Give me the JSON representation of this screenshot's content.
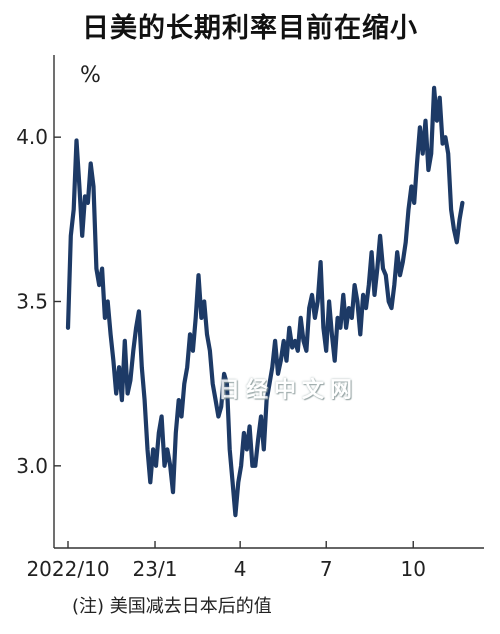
{
  "chart_data": {
    "type": "line",
    "title": "日美的长期利率目前在缩小",
    "unit_label": "%",
    "note": "(注) 美国减去日本后的值",
    "watermark": "日经中文网",
    "ylim": [
      2.75,
      4.25
    ],
    "y_ticks": [
      {
        "value": 3.0,
        "label": "3.0"
      },
      {
        "value": 3.5,
        "label": "3.5"
      },
      {
        "value": 4.0,
        "label": "4.0"
      }
    ],
    "x_ticks": [
      {
        "value": "2022-10",
        "label": "2022/10"
      },
      {
        "value": "2023-01",
        "label": "23/1"
      },
      {
        "value": "2023-04",
        "label": "4"
      },
      {
        "value": "2023-07",
        "label": "7"
      },
      {
        "value": "2023-10",
        "label": "10"
      }
    ],
    "x_range": [
      "2022-10-01",
      "2023-11-30"
    ],
    "line_color": "#1d3a66",
    "series": [
      {
        "x": [
          "2022-10-01",
          "2022-10-04",
          "2022-10-07",
          "2022-10-10",
          "2022-10-13",
          "2022-10-16",
          "2022-10-19",
          "2022-10-22",
          "2022-10-25",
          "2022-10-28",
          "2022-10-31",
          "2022-11-03",
          "2022-11-06",
          "2022-11-09",
          "2022-11-12",
          "2022-11-15",
          "2022-11-18",
          "2022-11-21",
          "2022-11-24",
          "2022-11-27",
          "2022-11-30",
          "2022-12-03",
          "2022-12-06",
          "2022-12-09",
          "2022-12-12",
          "2022-12-15",
          "2022-12-18",
          "2022-12-21",
          "2022-12-24",
          "2022-12-27",
          "2022-12-30",
          "2023-01-02",
          "2023-01-05",
          "2023-01-08",
          "2023-01-11",
          "2023-01-14",
          "2023-01-17",
          "2023-01-20",
          "2023-01-23",
          "2023-01-26",
          "2023-01-29",
          "2023-02-01",
          "2023-02-04",
          "2023-02-07",
          "2023-02-10",
          "2023-02-13",
          "2023-02-16",
          "2023-02-19",
          "2023-02-22",
          "2023-02-25",
          "2023-02-28",
          "2023-03-03",
          "2023-03-06",
          "2023-03-09",
          "2023-03-12",
          "2023-03-15",
          "2023-03-18",
          "2023-03-21",
          "2023-03-24",
          "2023-03-27",
          "2023-03-30",
          "2023-04-02",
          "2023-04-05",
          "2023-04-08",
          "2023-04-11",
          "2023-04-14",
          "2023-04-17",
          "2023-04-20",
          "2023-04-23",
          "2023-04-26",
          "2023-04-29",
          "2023-05-02",
          "2023-05-05",
          "2023-05-08",
          "2023-05-11",
          "2023-05-14",
          "2023-05-17",
          "2023-05-20",
          "2023-05-23",
          "2023-05-26",
          "2023-05-29",
          "2023-06-01",
          "2023-06-04",
          "2023-06-07",
          "2023-06-10",
          "2023-06-13",
          "2023-06-16",
          "2023-06-19",
          "2023-06-22",
          "2023-06-25",
          "2023-06-28",
          "2023-07-01",
          "2023-07-04",
          "2023-07-07",
          "2023-07-10",
          "2023-07-13",
          "2023-07-16",
          "2023-07-19",
          "2023-07-22",
          "2023-07-25",
          "2023-07-28",
          "2023-07-31",
          "2023-08-03",
          "2023-08-06",
          "2023-08-09",
          "2023-08-12",
          "2023-08-15",
          "2023-08-18",
          "2023-08-21",
          "2023-08-24",
          "2023-08-27",
          "2023-08-30",
          "2023-09-02",
          "2023-09-05",
          "2023-09-08",
          "2023-09-11",
          "2023-09-14",
          "2023-09-17",
          "2023-09-20",
          "2023-09-23",
          "2023-09-26",
          "2023-09-29",
          "2023-10-02",
          "2023-10-05",
          "2023-10-08",
          "2023-10-11",
          "2023-10-14",
          "2023-10-17",
          "2023-10-20",
          "2023-10-23",
          "2023-10-26",
          "2023-10-29",
          "2023-11-01",
          "2023-11-04",
          "2023-11-07",
          "2023-11-10",
          "2023-11-13",
          "2023-11-16",
          "2023-11-19",
          "2023-11-22"
        ],
        "y": [
          3.42,
          3.7,
          3.78,
          3.99,
          3.85,
          3.7,
          3.82,
          3.8,
          3.92,
          3.85,
          3.6,
          3.55,
          3.6,
          3.45,
          3.5,
          3.4,
          3.32,
          3.22,
          3.3,
          3.2,
          3.38,
          3.22,
          3.26,
          3.35,
          3.42,
          3.47,
          3.3,
          3.2,
          3.05,
          2.95,
          3.05,
          3.0,
          3.1,
          3.15,
          3.0,
          3.05,
          3.0,
          2.92,
          3.1,
          3.2,
          3.15,
          3.25,
          3.3,
          3.4,
          3.35,
          3.45,
          3.58,
          3.45,
          3.5,
          3.4,
          3.35,
          3.25,
          3.2,
          3.15,
          3.18,
          3.28,
          3.25,
          3.05,
          2.95,
          2.85,
          2.95,
          3.0,
          3.1,
          3.05,
          3.12,
          3.0,
          3.0,
          3.08,
          3.15,
          3.05,
          3.2,
          3.25,
          3.3,
          3.38,
          3.28,
          3.32,
          3.38,
          3.32,
          3.42,
          3.36,
          3.38,
          3.35,
          3.45,
          3.38,
          3.35,
          3.48,
          3.52,
          3.45,
          3.5,
          3.62,
          3.42,
          3.35,
          3.5,
          3.4,
          3.32,
          3.45,
          3.42,
          3.52,
          3.42,
          3.48,
          3.45,
          3.55,
          3.5,
          3.4,
          3.52,
          3.48,
          3.55,
          3.65,
          3.52,
          3.6,
          3.7,
          3.6,
          3.58,
          3.5,
          3.48,
          3.55,
          3.65,
          3.58,
          3.62,
          3.68,
          3.78,
          3.85,
          3.8,
          3.92,
          4.03,
          3.95,
          4.05,
          3.9,
          3.95,
          4.15,
          4.05,
          4.12,
          3.98,
          4.0,
          3.95,
          3.78,
          3.72,
          3.68,
          3.75,
          3.8
        ]
      }
    ]
  }
}
